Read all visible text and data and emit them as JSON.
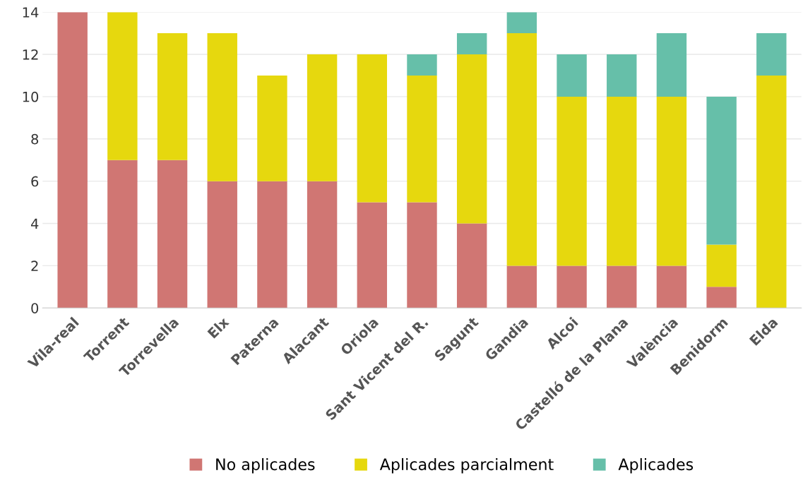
{
  "chart_data": {
    "type": "bar",
    "stacked": true,
    "categories": [
      "Vila-real",
      "Torrent",
      "Torrevella",
      "Elx",
      "Paterna",
      "Alacant",
      "Oriola",
      "Sant Vicent del R.",
      "Sagunt",
      "Gandia",
      "Alcoi",
      "Castelló de la Plana",
      "València",
      "Benidorm",
      "Elda"
    ],
    "series": [
      {
        "name": "No aplicades",
        "color": "#d07673",
        "values": [
          14,
          7,
          7,
          6,
          6,
          6,
          5,
          5,
          4,
          2,
          2,
          2,
          2,
          1,
          0
        ]
      },
      {
        "name": "Aplicades parcialment",
        "color": "#e6d80e",
        "values": [
          0,
          7,
          6,
          7,
          5,
          6,
          7,
          6,
          8,
          11,
          8,
          8,
          8,
          2,
          11
        ]
      },
      {
        "name": "Aplicades",
        "color": "#66bfa9",
        "values": [
          0,
          0,
          0,
          0,
          0,
          0,
          0,
          1,
          1,
          1,
          2,
          2,
          3,
          7,
          2
        ]
      }
    ],
    "ylim": [
      0,
      14
    ],
    "yticks": [
      0,
      2,
      4,
      6,
      8,
      10,
      12,
      14
    ],
    "grid": "y",
    "legend": "bottom"
  }
}
